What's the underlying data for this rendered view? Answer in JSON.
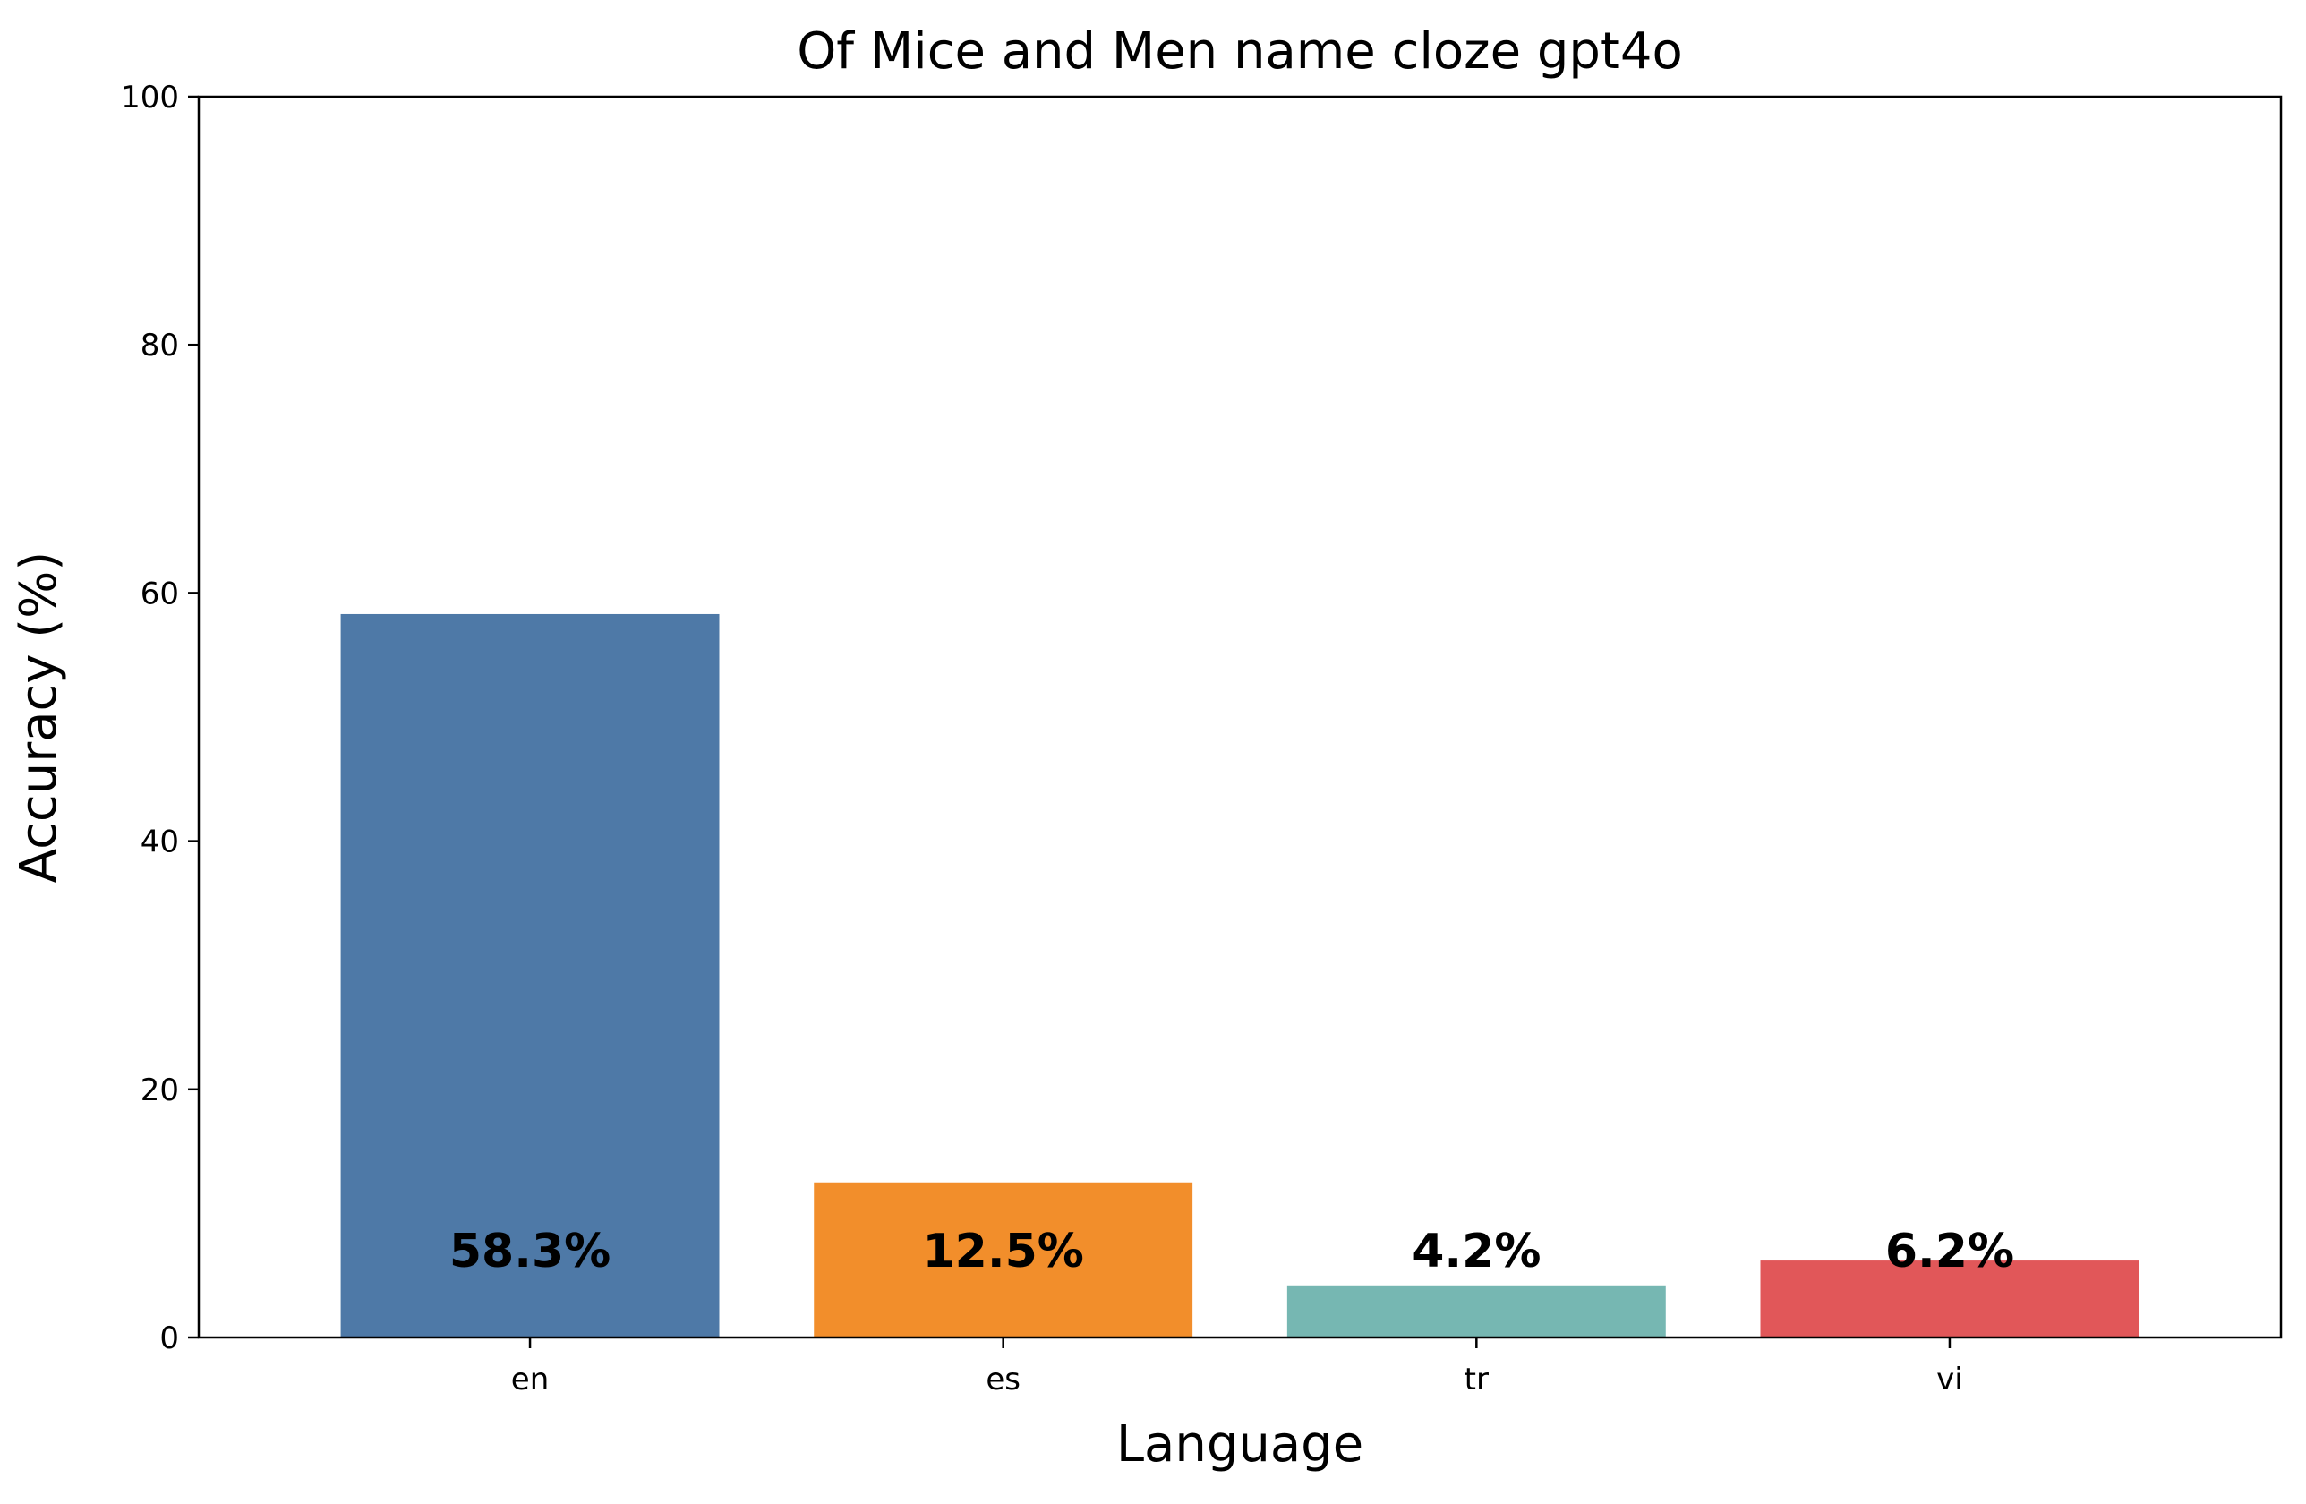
{
  "chart_data": {
    "type": "bar",
    "title": "Of Mice and Men name cloze gpt4o",
    "xlabel": "Language",
    "ylabel": "Accuracy (%)",
    "categories": [
      "en",
      "es",
      "tr",
      "vi"
    ],
    "values": [
      58.3,
      12.5,
      4.2,
      6.2
    ],
    "value_labels": [
      "58.3%",
      "12.5%",
      "4.2%",
      "6.2%"
    ],
    "colors": [
      "#4e79a7",
      "#f28e2b",
      "#76b7b2",
      "#e15759"
    ],
    "ylim": [
      0,
      100
    ],
    "yticks": [
      0,
      20,
      40,
      60,
      80,
      100
    ],
    "grid": false,
    "legend": "none"
  }
}
